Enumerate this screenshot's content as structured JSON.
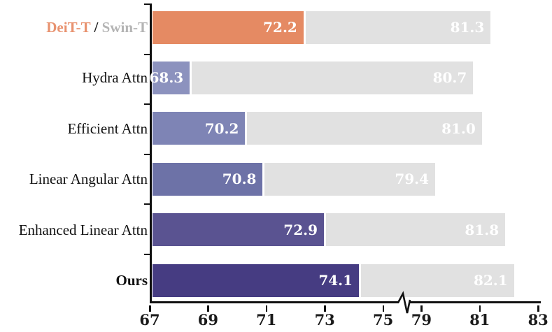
{
  "chart_data": {
    "type": "bar",
    "orientation": "horizontal",
    "title": "",
    "xlabel": "",
    "ylabel": "",
    "legend": null,
    "grid": false,
    "xlim": [
      67,
      83
    ],
    "x_ticks": [
      "67",
      "69",
      "71",
      "73",
      "75",
      "79",
      "81",
      "83"
    ],
    "x_tick_values": [
      67,
      69,
      71,
      73,
      75,
      79,
      81,
      83
    ],
    "axis_break_between": [
      75,
      79
    ],
    "axis_color": "#111111",
    "secondary_bar_color": "#E1E1E1",
    "value_label_color": "#FFFFFF",
    "categories": [
      "DeiT-T / Swin-T",
      "Hydra Attn",
      "Efficient Attn",
      "Linear Angular Attn",
      "Enhanced Linear Attn",
      "Ours"
    ],
    "series": [
      {
        "name": "primary",
        "values": [
          72.2,
          68.3,
          70.2,
          70.8,
          72.9,
          74.1
        ]
      },
      {
        "name": "secondary",
        "values": [
          81.3,
          80.7,
          81.0,
          79.4,
          81.8,
          82.1
        ]
      }
    ],
    "rows": [
      {
        "label_parts": [
          {
            "text": "DeiT-T",
            "color": "#E8926F",
            "bold": true
          },
          {
            "text": " / ",
            "color": "#1a1a1a",
            "bold": true
          },
          {
            "text": "Swin-T",
            "color": "#B4B4B4",
            "bold": true
          }
        ],
        "primary_value": 72.2,
        "secondary_value": 81.3,
        "primary_label": "72.2",
        "secondary_label": "81.3",
        "primary_color": "#E58A63"
      },
      {
        "label_parts": [
          {
            "text": "Hydra Attn",
            "color": "#111111",
            "bold": false
          }
        ],
        "primary_value": 68.3,
        "secondary_value": 80.7,
        "primary_label": "68.3",
        "secondary_label": "80.7",
        "primary_color": "#8C92BE"
      },
      {
        "label_parts": [
          {
            "text": "Efficient Attn",
            "color": "#111111",
            "bold": false
          }
        ],
        "primary_value": 70.2,
        "secondary_value": 81.0,
        "primary_label": "70.2",
        "secondary_label": "81.0",
        "primary_color": "#7E84B5"
      },
      {
        "label_parts": [
          {
            "text": "Linear Angular Attn",
            "color": "#111111",
            "bold": false
          }
        ],
        "primary_value": 70.8,
        "secondary_value": 79.4,
        "primary_label": "70.8",
        "secondary_label": "79.4",
        "primary_color": "#6D72A7"
      },
      {
        "label_parts": [
          {
            "text": "Enhanced Linear Attn",
            "color": "#111111",
            "bold": false
          }
        ],
        "primary_value": 72.9,
        "secondary_value": 81.8,
        "primary_label": "72.9",
        "secondary_label": "81.8",
        "primary_color": "#5A5391"
      },
      {
        "label_parts": [
          {
            "text": "Ours",
            "color": "#111111",
            "bold": true
          }
        ],
        "primary_value": 74.1,
        "secondary_value": 82.1,
        "primary_label": "74.1",
        "secondary_label": "82.1",
        "primary_color": "#463C82"
      }
    ]
  }
}
